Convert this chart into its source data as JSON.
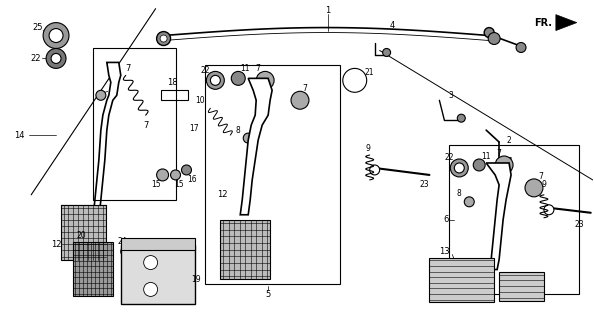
{
  "bg_color": "#ffffff",
  "fig_width": 5.94,
  "fig_height": 3.2,
  "dpi": 100,
  "black": "#000000",
  "gray_dark": "#555555",
  "gray_light": "#aaaaaa",
  "gray_medium": "#888888"
}
